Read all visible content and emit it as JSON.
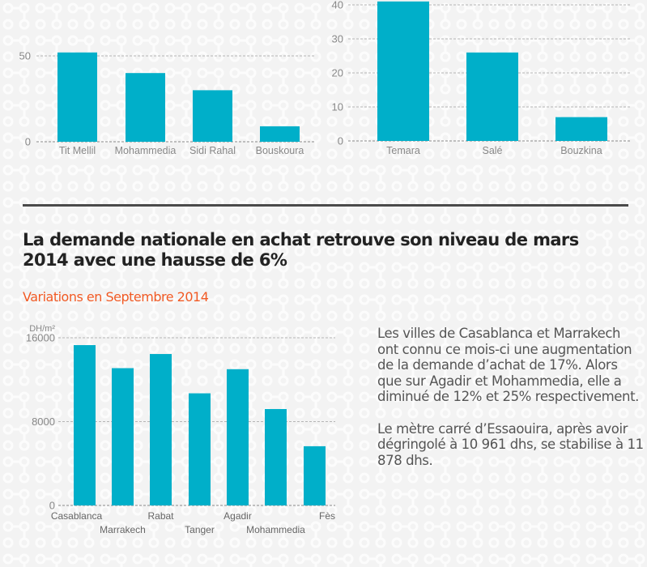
{
  "theme": {
    "bar_color": "#00afc9",
    "grid_color": "#b5b5b5",
    "axis_text_color": "#888888",
    "title_color": "#222222",
    "subtitle_color": "#f15a24",
    "text_color": "#555555"
  },
  "chart_data": [
    {
      "type": "bar",
      "title": "",
      "xlabel": "",
      "ylabel": "",
      "categories": [
        "Tit Mellil",
        "Mohammedia",
        "Sidi Rahal",
        "Bouskoura"
      ],
      "values": [
        52,
        40,
        30,
        9
      ],
      "yticks": [
        0,
        50
      ],
      "ytick_labels": [
        "0",
        "50"
      ],
      "ylim": [
        0,
        50
      ],
      "grid": true
    },
    {
      "type": "bar",
      "title": "",
      "xlabel": "",
      "ylabel": "",
      "categories": [
        "Temara",
        "Salé",
        "Bouzkina"
      ],
      "values": [
        41,
        26,
        7
      ],
      "yticks": [
        0,
        10,
        20,
        30,
        40
      ],
      "ytick_labels": [
        "0",
        "10",
        "20",
        "30",
        "40"
      ],
      "ylim": [
        0,
        40
      ],
      "grid": true
    },
    {
      "type": "bar",
      "title": "Variations en Septembre 2014",
      "xlabel": "",
      "ylabel": "DH/m²",
      "categories": [
        "Casablanca",
        "Marrakech",
        "Rabat",
        "Tanger",
        "Agadir",
        "Mohammedia",
        "Fès"
      ],
      "values": [
        15300,
        13100,
        14450,
        10700,
        13000,
        9200,
        5650
      ],
      "yticks": [
        0,
        8000,
        16000
      ],
      "ytick_labels": [
        "0",
        "8000",
        "16000"
      ],
      "ylim": [
        0,
        16000
      ],
      "grid": true
    }
  ],
  "section": {
    "title": "La demande nationale en achat retrouve son niveau de mars 2014 avec une hausse de 6%",
    "subtitle": "Variations en Septembre 2014"
  },
  "commentary": {
    "paragraphs": [
      "Les villes de Casablanca et Marrakech ont connu ce mois-ci une augmentation de la demande d’achat de 17%. Alors que sur Agadir et Mohammedia, elle a diminué de 12% et 25% respectivement.",
      "Le mètre carré d’Essaouira, après avoir dégringolé à 10 961 dhs, se stabilise à 11 878 dhs."
    ]
  }
}
